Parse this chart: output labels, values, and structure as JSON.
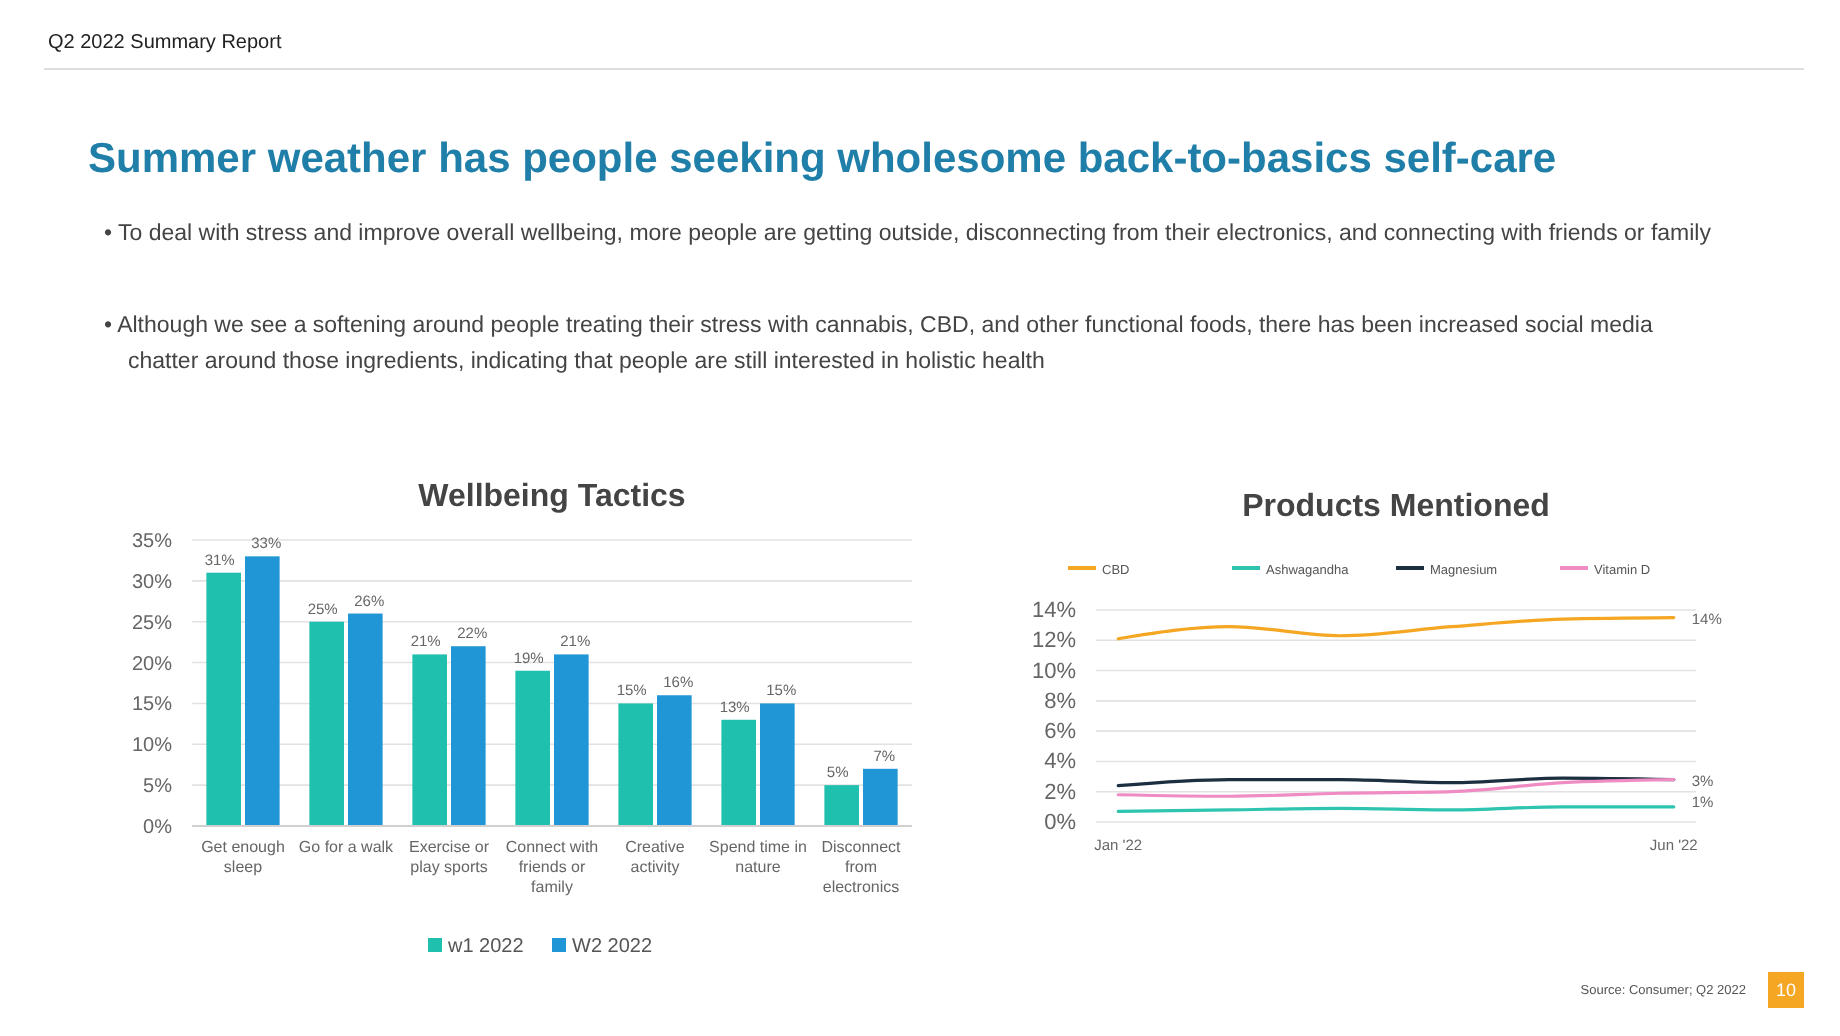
{
  "chart_data": [
    {
      "type": "bar",
      "title": "Wellbeing Tactics",
      "categories": [
        "Get enough sleep",
        "Go for a walk",
        "Exercise or play sports",
        "Connect with friends or family",
        "Creative activity",
        "Spend time in nature",
        "Disconnect from electronics"
      ],
      "series": [
        {
          "name": "w1 2022",
          "color": "#1fc0ae",
          "values": [
            31,
            25,
            21,
            19,
            15,
            13,
            5
          ],
          "value_labels": [
            "31%",
            "25%",
            "21%",
            "19%",
            "15%",
            "13%",
            "5%"
          ]
        },
        {
          "name": "W2 2022",
          "color": "#2196d6",
          "values": [
            33,
            26,
            22,
            21,
            16,
            15,
            7
          ],
          "value_labels": [
            "33%",
            "26%",
            "22%",
            "21%",
            "16%",
            "15%",
            "7%"
          ]
        }
      ],
      "ylim": [
        0,
        35
      ],
      "yticks": [
        {
          "value": 0,
          "label": "0%"
        },
        {
          "value": 5,
          "label": "5%"
        },
        {
          "value": 10,
          "label": "10%"
        },
        {
          "value": 15,
          "label": "15%"
        },
        {
          "value": 20,
          "label": "20%"
        },
        {
          "value": 25,
          "label": "25%"
        },
        {
          "value": 30,
          "label": "30%"
        },
        {
          "value": 35,
          "label": "35%"
        }
      ],
      "grid": "y",
      "legend": "bottom",
      "annotations": [
        "Q2 2022 Summary Report",
        "Summer weather has people seeking wholesome back-to-basics self-care",
        "• To deal with stress and improve overall wellbeing, more people are getting outside, disconnecting from their electronics, and connecting with friends or family",
        "• Although we see a softening around people treating their stress with cannabis, CBD, and other functional foods, there has been increased social media chatter around those ingredients, indicating that people are still interested in holistic health"
      ]
    },
    {
      "type": "line",
      "title": "Products Mentioned",
      "categories": [
        "Jan '22",
        null,
        null,
        null,
        null,
        "Jun '22"
      ],
      "series": [
        {
          "name": "CBD",
          "color": "#f5a623",
          "values": [
            12.1,
            12.9,
            12.3,
            12.9,
            13.4,
            13.5
          ],
          "value_labels": [
            null,
            null,
            null,
            null,
            null,
            "14%"
          ]
        },
        {
          "name": "Ashwagandha",
          "color": "#2ec4b0",
          "values": [
            0.7,
            0.8,
            0.9,
            0.8,
            1.0,
            1.0
          ],
          "value_labels": [
            null,
            null,
            null,
            null,
            null,
            "1%"
          ]
        },
        {
          "name": "Magnesium",
          "color": "#1b2f40",
          "values": [
            2.4,
            2.8,
            2.8,
            2.6,
            2.9,
            2.8
          ],
          "value_labels": [
            null,
            null,
            null,
            null,
            null,
            "3%"
          ]
        },
        {
          "name": "Vitamin D",
          "color": "#f08cc4",
          "values": [
            1.8,
            1.7,
            1.9,
            2.0,
            2.6,
            2.8
          ]
        }
      ],
      "ylim": [
        0,
        14
      ],
      "yticks": [
        {
          "value": 0,
          "label": "0%"
        },
        {
          "value": 2,
          "label": "2%"
        },
        {
          "value": 4,
          "label": "4%"
        },
        {
          "value": 6,
          "label": "6%"
        },
        {
          "value": 8,
          "label": "8%"
        },
        {
          "value": 10,
          "label": "10%"
        },
        {
          "value": 12,
          "label": "12%"
        },
        {
          "value": 14,
          "label": "14%"
        }
      ],
      "grid": "y",
      "legend": "top",
      "marker": "none",
      "line_style": "solid",
      "annotations": [
        "Source: Consumer; Q2 2022",
        "10"
      ]
    }
  ]
}
